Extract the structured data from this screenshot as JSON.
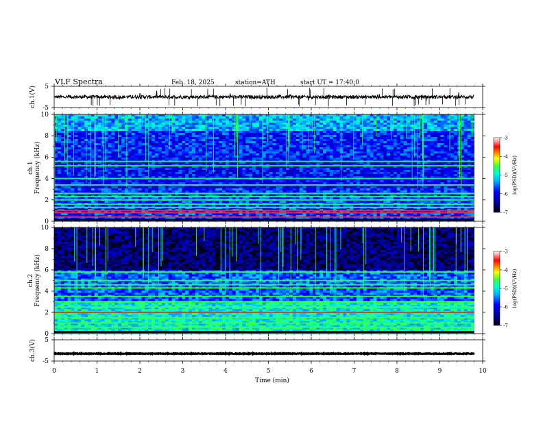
{
  "header": {
    "title": "VLF Spectra",
    "date": "Feb. 18, 2025",
    "station": "station=ATH",
    "start": "start UT = 17:40:0"
  },
  "chart_data": [
    {
      "type": "line",
      "panel": "ch1-waveform",
      "ylabel": "ch.1(V)",
      "ylim": [
        -5,
        5
      ],
      "yticks": [
        "5",
        "-5"
      ],
      "xlim": [
        0,
        10
      ],
      "series": [
        {
          "x_range": [
            0,
            9.8
          ],
          "baseline": 0,
          "noise_amplitude": 0.8
        }
      ]
    },
    {
      "type": "heatmap",
      "panel": "ch1-spectrogram",
      "ylabel": "ch.1\nFrequency (kHz)",
      "ylim": [
        0,
        10
      ],
      "yticks": [
        "0",
        "2",
        "4",
        "6",
        "8",
        "10"
      ],
      "xlim": [
        0,
        10
      ],
      "data_until_min": 9.8,
      "colorbar": {
        "label": "log(PSD)(V²/Hz)",
        "range": [
          -7,
          -3
        ],
        "ticks": [
          "-3",
          "-4",
          "-5",
          "-6",
          "-7"
        ]
      },
      "bands_khz": [
        0.4,
        0.8,
        1.0,
        1.3,
        1.6,
        2.0,
        2.3,
        2.6,
        3.4,
        4.0,
        5.2,
        5.6
      ],
      "colors": [
        "#000000",
        "#00008f",
        "#0000ff",
        "#0080ff",
        "#00ffff",
        "#80ff80",
        "#ffff00",
        "#ff8000",
        "#ff0000",
        "#ffffff"
      ]
    },
    {
      "type": "heatmap",
      "panel": "ch2-spectrogram",
      "ylabel": "ch.2\nFrequency (kHz)",
      "ylim": [
        0,
        10
      ],
      "yticks": [
        "0",
        "2",
        "4",
        "6",
        "8",
        "10"
      ],
      "xlim": [
        0,
        10
      ],
      "data_until_min": 9.8,
      "colorbar": {
        "label": "log(PSD)(V²/Hz)",
        "range": [
          -7,
          -3
        ],
        "ticks": [
          "-3",
          "-4",
          "-5",
          "-6",
          "-7"
        ]
      },
      "bands_khz": [
        0.6,
        1.0,
        1.5,
        2.0,
        2.5,
        3.0,
        3.5,
        4.3,
        4.6,
        5.0,
        5.8
      ]
    },
    {
      "type": "line",
      "panel": "ch3-waveform",
      "ylabel": "ch.3(V)",
      "ylim": [
        -5,
        5
      ],
      "yticks": [
        "5",
        "-5"
      ],
      "xlim": [
        0,
        10
      ],
      "xlabel": "Time (min)",
      "xticks": [
        "0",
        "1",
        "2",
        "3",
        "4",
        "5",
        "6",
        "7",
        "8",
        "9",
        "10"
      ],
      "series": [
        {
          "x_range": [
            0,
            9.8
          ],
          "baseline": -1.5,
          "noise_amplitude": 0.15
        }
      ]
    }
  ]
}
